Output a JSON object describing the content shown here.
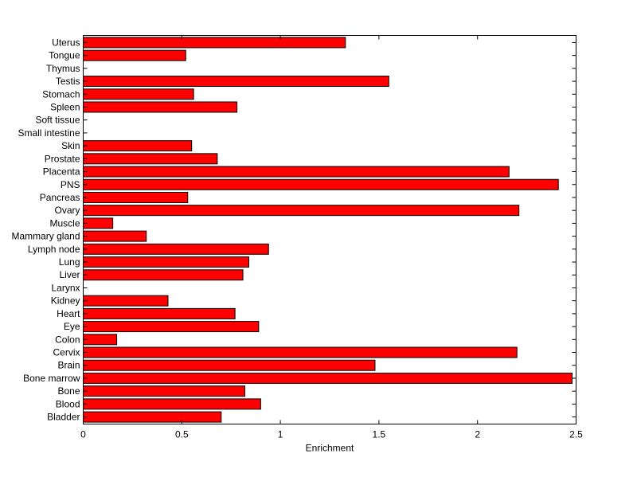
{
  "chart_data": {
    "type": "bar",
    "orientation": "horizontal",
    "title": "",
    "xlabel": "Enrichment",
    "ylabel": "",
    "xlim": [
      0,
      2.5
    ],
    "xticks": [
      "0",
      "0.5",
      "1",
      "1.5",
      "2",
      "2.5"
    ],
    "grid": false,
    "legend": "none",
    "bar_color": "#ff0000",
    "categories": [
      "Uterus",
      "Tongue",
      "Thymus",
      "Testis",
      "Stomach",
      "Spleen",
      "Soft tissue",
      "Small intestine",
      "Skin",
      "Prostate",
      "Placenta",
      "PNS",
      "Pancreas",
      "Ovary",
      "Muscle",
      "Mammary gland",
      "Lymph node",
      "Lung",
      "Liver",
      "Larynx",
      "Kidney",
      "Heart",
      "Eye",
      "Colon",
      "Cervix",
      "Brain",
      "Bone marrow",
      "Bone",
      "Blood",
      "Bladder"
    ],
    "values": [
      1.33,
      0.52,
      0,
      1.55,
      0.56,
      0.78,
      0,
      0,
      0.55,
      0.68,
      2.16,
      2.41,
      0.53,
      2.21,
      0.15,
      0.32,
      0.94,
      0.84,
      0.81,
      0,
      0.43,
      0.77,
      0.89,
      0.17,
      2.2,
      1.48,
      2.48,
      0.82,
      0.9,
      0.7
    ]
  }
}
